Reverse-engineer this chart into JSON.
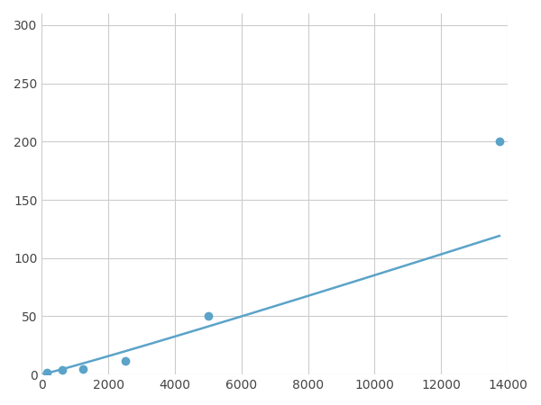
{
  "x_points": [
    156,
    625,
    1250,
    2500,
    5000,
    13750
  ],
  "y_points": [
    2,
    4,
    5,
    12,
    50,
    200
  ],
  "xlim": [
    0,
    14000
  ],
  "ylim": [
    0,
    310
  ],
  "xticks": [
    0,
    2000,
    4000,
    6000,
    8000,
    10000,
    12000,
    14000
  ],
  "yticks": [
    0,
    50,
    100,
    150,
    200,
    250,
    300
  ],
  "line_color": "#5ba3c9",
  "marker_color": "#5ba3c9",
  "background_color": "#ffffff",
  "grid_color": "#cccccc",
  "marker_size": 36,
  "line_width": 1.8
}
